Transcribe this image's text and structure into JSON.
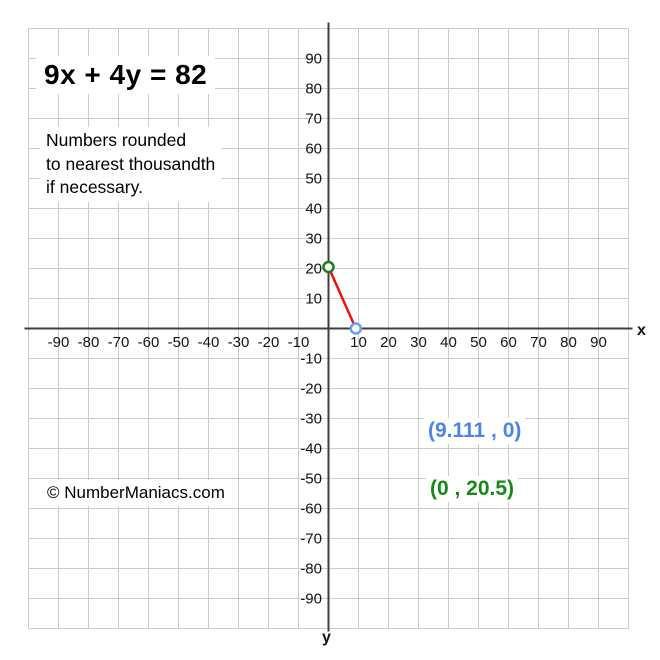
{
  "chart_data": {
    "type": "line",
    "title": "9x + 4y = 82",
    "note_lines": [
      "Numbers rounded",
      "to nearest thousandth",
      "if necessary."
    ],
    "copyright": "© NumberManiacs.com",
    "axis": {
      "x_label": "x",
      "y_label": "y",
      "xlim": [
        -100,
        100
      ],
      "ylim": [
        -100,
        100
      ],
      "grid_step": 10,
      "grid_on": true,
      "x_ticks": [
        -90,
        -80,
        -70,
        -60,
        -50,
        -40,
        -30,
        -20,
        -10,
        10,
        20,
        30,
        40,
        50,
        60,
        70,
        80,
        90
      ],
      "y_ticks": [
        90,
        80,
        70,
        60,
        50,
        40,
        30,
        20,
        10,
        -10,
        -20,
        -30,
        -40,
        -50,
        -60,
        -70,
        -80,
        -90
      ]
    },
    "series": [
      {
        "name": "9x + 4y = 82",
        "points": [
          {
            "x": 0,
            "y": 20.5
          },
          {
            "x": 9.111,
            "y": 0
          }
        ]
      }
    ],
    "x_intercept": {
      "x": 9.111,
      "y": 0,
      "label": "(9.111 , 0)"
    },
    "y_intercept": {
      "x": 0,
      "y": 20.5,
      "label": "(0 , 20.5)"
    }
  },
  "colors": {
    "line": "#ee1111",
    "x_intercept": "#4a86e8",
    "x_intercept_point": "#6d9eeb",
    "y_intercept": "#168a16",
    "y_intercept_point": "#1a7f1a",
    "grid": "#cccccc",
    "axis": "#3f3f3f",
    "tick_text": "#141414",
    "background": "#ffffff"
  }
}
